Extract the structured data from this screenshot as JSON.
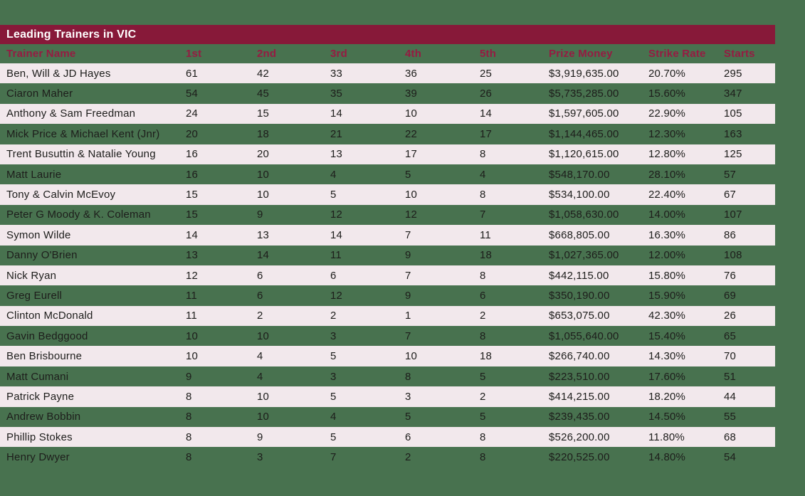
{
  "colors": {
    "page_background": "#48724F",
    "title_bar_background": "#871939",
    "title_text": "#FFFFFF",
    "column_header_text": "#961B42",
    "row_pink_background": "#F2E8EC",
    "data_text": "#1D1D1B"
  },
  "chart_data": {
    "type": "table",
    "title": "Leading Trainers in VIC",
    "columns": [
      "Trainer Name",
      "1st",
      "2nd",
      "3rd",
      "4th",
      "5th",
      "Prize Money",
      "Strike Rate",
      "Starts"
    ],
    "rows": [
      [
        "Ben, Will & JD Hayes",
        "61",
        "42",
        "33",
        "36",
        "25",
        "$3,919,635.00",
        "20.70%",
        "295"
      ],
      [
        "Ciaron Maher",
        "54",
        "45",
        "35",
        "39",
        "26",
        "$5,735,285.00",
        "15.60%",
        "347"
      ],
      [
        "Anthony & Sam Freedman",
        "24",
        "15",
        "14",
        "10",
        "14",
        "$1,597,605.00",
        "22.90%",
        "105"
      ],
      [
        "Mick Price & Michael Kent (Jnr)",
        "20",
        "18",
        "21",
        "22",
        "17",
        "$1,144,465.00",
        "12.30%",
        "163"
      ],
      [
        "Trent Busuttin & Natalie Young",
        "16",
        "20",
        "13",
        "17",
        "8",
        "$1,120,615.00",
        "12.80%",
        "125"
      ],
      [
        "Matt Laurie",
        "16",
        "10",
        "4",
        "5",
        "4",
        "$548,170.00",
        "28.10%",
        "57"
      ],
      [
        "Tony & Calvin McEvoy",
        "15",
        "10",
        "5",
        "10",
        "8",
        "$534,100.00",
        "22.40%",
        "67"
      ],
      [
        "Peter G Moody & K. Coleman",
        "15",
        "9",
        "12",
        "12",
        "7",
        "$1,058,630.00",
        "14.00%",
        "107"
      ],
      [
        "Symon Wilde",
        "14",
        "13",
        "14",
        "7",
        "11",
        "$668,805.00",
        "16.30%",
        "86"
      ],
      [
        "Danny O'Brien",
        "13",
        "14",
        "11",
        "9",
        "18",
        "$1,027,365.00",
        "12.00%",
        "108"
      ],
      [
        "Nick Ryan",
        "12",
        "6",
        "6",
        "7",
        "8",
        "$442,115.00",
        "15.80%",
        "76"
      ],
      [
        "Greg Eurell",
        "11",
        "6",
        "12",
        "9",
        "6",
        "$350,190.00",
        "15.90%",
        "69"
      ],
      [
        "Clinton McDonald",
        "11",
        "2",
        "2",
        "1",
        "2",
        "$653,075.00",
        "42.30%",
        "26"
      ],
      [
        "Gavin Bedggood",
        "10",
        "10",
        "3",
        "7",
        "8",
        "$1,055,640.00",
        "15.40%",
        "65"
      ],
      [
        "Ben Brisbourne",
        "10",
        "4",
        "5",
        "10",
        "18",
        "$266,740.00",
        "14.30%",
        "70"
      ],
      [
        "Matt Cumani",
        "9",
        "4",
        "3",
        "8",
        "5",
        "$223,510.00",
        "17.60%",
        "51"
      ],
      [
        "Patrick Payne",
        "8",
        "10",
        "5",
        "3",
        "2",
        "$414,215.00",
        "18.20%",
        "44"
      ],
      [
        "Andrew Bobbin",
        "8",
        "10",
        "4",
        "5",
        "5",
        "$239,435.00",
        "14.50%",
        "55"
      ],
      [
        "Phillip Stokes",
        "8",
        "9",
        "5",
        "6",
        "8",
        "$526,200.00",
        "11.80%",
        "68"
      ],
      [
        "Henry Dwyer",
        "8",
        "3",
        "7",
        "2",
        "8",
        "$220,525.00",
        "14.80%",
        "54"
      ]
    ]
  }
}
